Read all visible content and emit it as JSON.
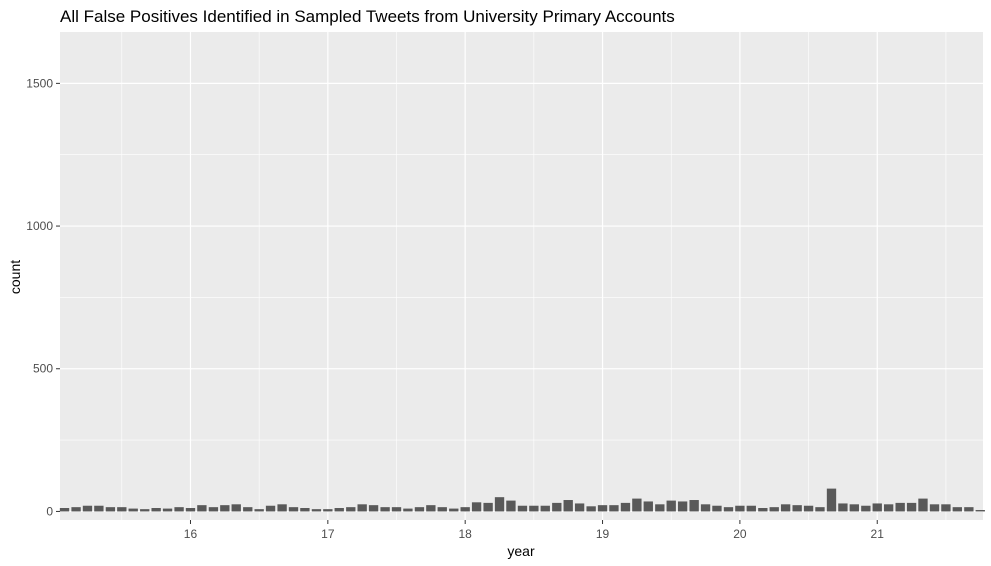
{
  "chart_data": {
    "type": "bar",
    "title": "All False Positives Identified in Sampled Tweets from University Primary Accounts",
    "xlabel": "year",
    "ylabel": "count",
    "xlim": [
      15.05,
      21.77
    ],
    "ylim": [
      -30,
      1680
    ],
    "x_ticks": [
      16,
      17,
      18,
      19,
      20,
      21
    ],
    "y_ticks": [
      0,
      500,
      1000,
      1500
    ],
    "grid": true,
    "legend": "none",
    "bar_width": 0.068,
    "colors": {
      "panel": "#ebebeb",
      "grid": "#ffffff",
      "bar": "#595959",
      "tick_label": "#4d4d4d"
    },
    "x": [
      15.083,
      15.167,
      15.25,
      15.333,
      15.417,
      15.5,
      15.583,
      15.667,
      15.75,
      15.833,
      15.917,
      16.0,
      16.083,
      16.167,
      16.25,
      16.333,
      16.417,
      16.5,
      16.583,
      16.667,
      16.75,
      16.833,
      16.917,
      17.0,
      17.083,
      17.167,
      17.25,
      17.333,
      17.417,
      17.5,
      17.583,
      17.667,
      17.75,
      17.833,
      17.917,
      18.0,
      18.083,
      18.167,
      18.25,
      18.333,
      18.417,
      18.5,
      18.583,
      18.667,
      18.75,
      18.833,
      18.917,
      19.0,
      19.083,
      19.167,
      19.25,
      19.333,
      19.417,
      19.5,
      19.583,
      19.667,
      19.75,
      19.833,
      19.917,
      20.0,
      20.083,
      20.167,
      20.25,
      20.333,
      20.417,
      20.5,
      20.583,
      20.667,
      20.75,
      20.833,
      20.917,
      21.0,
      21.083,
      21.167,
      21.25,
      21.333,
      21.417,
      21.5,
      21.583,
      21.667,
      21.75
    ],
    "values": [
      12,
      15,
      20,
      20,
      15,
      15,
      10,
      8,
      12,
      10,
      15,
      12,
      22,
      15,
      22,
      25,
      15,
      8,
      20,
      25,
      15,
      12,
      8,
      8,
      12,
      15,
      25,
      22,
      15,
      15,
      10,
      15,
      22,
      15,
      10,
      15,
      32,
      30,
      50,
      38,
      20,
      20,
      20,
      30,
      40,
      28,
      18,
      22,
      22,
      30,
      45,
      35,
      25,
      38,
      35,
      40,
      25,
      20,
      15,
      20,
      20,
      12,
      15,
      25,
      22,
      20,
      15,
      80,
      28,
      25,
      20,
      28,
      25,
      30,
      30,
      45,
      25,
      25,
      15,
      15,
      5
    ]
  }
}
